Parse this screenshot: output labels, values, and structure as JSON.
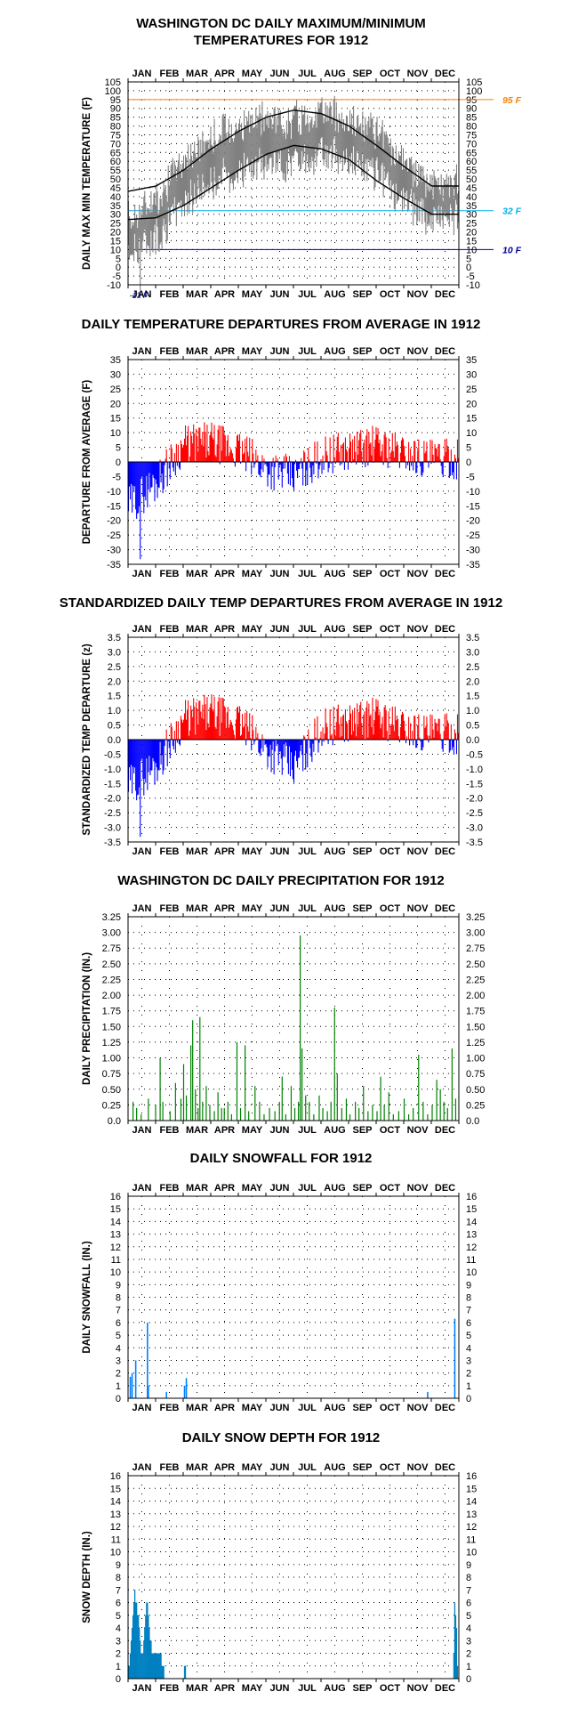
{
  "months": [
    "JAN",
    "FEB",
    "MAR",
    "APR",
    "MAY",
    "JUN",
    "JUL",
    "AUG",
    "SEP",
    "OCT",
    "NOV",
    "DEC"
  ],
  "chart_data": [
    {
      "id": "temps",
      "type": "line",
      "title_line1": "WASHINGTON DC DAILY MAXIMUM/MINIMUM",
      "title_line2": "TEMPERATURES FOR 1912",
      "ylabel": "DAILY MAX MIN TEMPERATURE (F)",
      "ylim": [
        -10,
        105
      ],
      "yticks": [
        105,
        100,
        95,
        90,
        85,
        80,
        75,
        70,
        65,
        60,
        55,
        50,
        45,
        40,
        35,
        30,
        25,
        20,
        15,
        10,
        5,
        0,
        -5,
        -10
      ],
      "grid": "dotted",
      "reference_lines": [
        {
          "value": 95,
          "label": "95 F",
          "color": "#ff8000"
        },
        {
          "value": 32,
          "label": "32 F",
          "color": "#00b0f0"
        },
        {
          "value": 10,
          "label": "10 F",
          "color": "#0000a0"
        }
      ],
      "annotations": [
        {
          "text": "-13 F",
          "x_month": 0.35,
          "y": -13
        }
      ],
      "normal_high_by_month": [
        43,
        46,
        55,
        67,
        77,
        85,
        89,
        87,
        80,
        69,
        57,
        46
      ],
      "normal_low_by_month": [
        27,
        28,
        35,
        45,
        55,
        64,
        69,
        67,
        61,
        49,
        39,
        30
      ],
      "series": [
        {
          "role": "daily_max_min_range",
          "color": "#808080",
          "note": "daily vertical bars from min to max"
        },
        {
          "role": "normal_high",
          "color": "#000000"
        },
        {
          "role": "normal_low",
          "color": "#000000"
        }
      ]
    },
    {
      "id": "departures",
      "type": "bar",
      "title_line1": "DAILY TEMPERATURE DEPARTURES FROM AVERAGE IN 1912",
      "ylabel": "DEPARTURE FROM AVERAGE (F)",
      "ylim": [
        -35,
        35
      ],
      "yticks": [
        35,
        30,
        25,
        20,
        15,
        10,
        5,
        0,
        -5,
        -10,
        -15,
        -20,
        -25,
        -30,
        -35
      ],
      "positive_color": "#ff0000",
      "negative_color": "#0000ff",
      "monthly_departure_profile": [
        -15,
        -7,
        6,
        7,
        4,
        -2,
        -5,
        2,
        4,
        6,
        3,
        1
      ]
    },
    {
      "id": "standardized",
      "type": "bar",
      "title_line1": "STANDARDIZED DAILY TEMP DEPARTURES FROM AVERAGE IN 1912",
      "ylabel": "STANDARDIZED TEMP DEPARTURE (z)",
      "ylim": [
        -3.5,
        3.5
      ],
      "yticks": [
        "3.5",
        "3.0",
        "2.5",
        "2.0",
        "1.5",
        "1.0",
        "0.5",
        "0.0",
        "-0.5",
        "-1.0",
        "-1.5",
        "-2.0",
        "-2.5",
        "-3.0",
        "-3.5"
      ],
      "positive_color": "#ff0000",
      "negative_color": "#0000ff",
      "monthly_departure_profile": [
        -1.6,
        -0.9,
        0.7,
        0.9,
        0.6,
        -0.3,
        -1.0,
        0.4,
        0.6,
        0.8,
        0.4,
        0.2
      ]
    },
    {
      "id": "precip",
      "type": "bar",
      "title_line1": "WASHINGTON DC DAILY PRECIPITATION FOR 1912",
      "ylabel": "DAILY PRECIPITATION (IN.)",
      "ylim": [
        0,
        3.25
      ],
      "yticks": [
        "3.25",
        "3.00",
        "2.75",
        "2.50",
        "2.25",
        "2.00",
        "1.75",
        "1.50",
        "1.25",
        "1.00",
        "0.75",
        "0.50",
        "0.25",
        "0.0"
      ],
      "color": "#008000",
      "events": [
        [
          5,
          0.3
        ],
        [
          9,
          0.2
        ],
        [
          14,
          0.1
        ],
        [
          22,
          0.35
        ],
        [
          30,
          0.25
        ],
        [
          35,
          1.0
        ],
        [
          38,
          0.3
        ],
        [
          46,
          0.15
        ],
        [
          52,
          0.6
        ],
        [
          58,
          0.35
        ],
        [
          61,
          0.9
        ],
        [
          64,
          0.4
        ],
        [
          69,
          1.2
        ],
        [
          71,
          1.6
        ],
        [
          74,
          0.5
        ],
        [
          77,
          0.2
        ],
        [
          79,
          1.65
        ],
        [
          82,
          0.3
        ],
        [
          86,
          0.55
        ],
        [
          90,
          0.25
        ],
        [
          95,
          0.15
        ],
        [
          99,
          0.45
        ],
        [
          103,
          0.2
        ],
        [
          106,
          0.2
        ],
        [
          110,
          0.3
        ],
        [
          114,
          0.1
        ],
        [
          120,
          1.25
        ],
        [
          124,
          0.2
        ],
        [
          129,
          1.2
        ],
        [
          133,
          0.15
        ],
        [
          140,
          0.55
        ],
        [
          145,
          0.3
        ],
        [
          150,
          0.1
        ],
        [
          156,
          0.2
        ],
        [
          162,
          0.15
        ],
        [
          167,
          0.3
        ],
        [
          170,
          0.7
        ],
        [
          174,
          0.1
        ],
        [
          180,
          0.55
        ],
        [
          184,
          0.2
        ],
        [
          188,
          0.3
        ],
        [
          190,
          2.95
        ],
        [
          192,
          1.15
        ],
        [
          196,
          0.4
        ],
        [
          200,
          0.3
        ],
        [
          205,
          0.1
        ],
        [
          211,
          0.4
        ],
        [
          215,
          0.2
        ],
        [
          220,
          0.15
        ],
        [
          224,
          0.3
        ],
        [
          228,
          1.8
        ],
        [
          231,
          0.75
        ],
        [
          236,
          0.2
        ],
        [
          241,
          0.35
        ],
        [
          245,
          0.1
        ],
        [
          251,
          0.3
        ],
        [
          255,
          0.2
        ],
        [
          260,
          0.55
        ],
        [
          265,
          0.15
        ],
        [
          270,
          0.25
        ],
        [
          275,
          0.15
        ],
        [
          279,
          0.7
        ],
        [
          283,
          0.25
        ],
        [
          288,
          0.45
        ],
        [
          293,
          0.1
        ],
        [
          299,
          0.15
        ],
        [
          305,
          0.35
        ],
        [
          310,
          0.1
        ],
        [
          315,
          0.2
        ],
        [
          321,
          1.05
        ],
        [
          326,
          0.3
        ],
        [
          331,
          0.1
        ],
        [
          336,
          0.25
        ],
        [
          341,
          0.65
        ],
        [
          345,
          0.5
        ],
        [
          349,
          0.3
        ],
        [
          353,
          0.2
        ],
        [
          358,
          1.15
        ],
        [
          362,
          0.35
        ]
      ]
    },
    {
      "id": "snowfall",
      "type": "bar",
      "title_line1": "DAILY SNOWFALL FOR 1912",
      "ylabel": "DAILY SNOWFALL (IN.)",
      "ylim": [
        0,
        16
      ],
      "yticks": [
        16,
        15,
        14,
        13,
        12,
        11,
        10,
        9,
        8,
        7,
        6,
        5,
        4,
        3,
        2,
        1,
        0
      ],
      "color": "#0080ff",
      "events": [
        [
          2,
          1.7
        ],
        [
          4,
          2.0
        ],
        [
          8,
          3.0
        ],
        [
          21,
          6.0
        ],
        [
          22,
          1.0
        ],
        [
          42,
          0.5
        ],
        [
          62,
          1.0
        ],
        [
          64,
          1.6
        ],
        [
          331,
          0.5
        ],
        [
          361,
          6.3
        ]
      ]
    },
    {
      "id": "snowdepth",
      "type": "bar",
      "title_line1": "DAILY SNOW DEPTH FOR 1912",
      "ylabel": "SNOW DEPTH (IN.)",
      "ylim": [
        0,
        16
      ],
      "yticks": [
        16,
        15,
        14,
        13,
        12,
        11,
        10,
        9,
        8,
        7,
        6,
        5,
        4,
        3,
        2,
        1,
        0
      ],
      "color": "#0080c0",
      "values": [
        1,
        1,
        2,
        3,
        4,
        5,
        6,
        7,
        6,
        6,
        5,
        5,
        4,
        3,
        2,
        2,
        2,
        3,
        4,
        5,
        6,
        6,
        5,
        4,
        3,
        3,
        2,
        2,
        2,
        2,
        2,
        2,
        2,
        2,
        2,
        2,
        2,
        1,
        1,
        1,
        0,
        0,
        0,
        0,
        0,
        0,
        0,
        0,
        0,
        0,
        0,
        0,
        0,
        0,
        0,
        0,
        0,
        0,
        0,
        0,
        0,
        0,
        1,
        1,
        0
      ],
      "end_values": [
        [
          360,
          2
        ],
        [
          361,
          6
        ],
        [
          362,
          5
        ],
        [
          363,
          4
        ],
        [
          364,
          1
        ]
      ]
    }
  ]
}
